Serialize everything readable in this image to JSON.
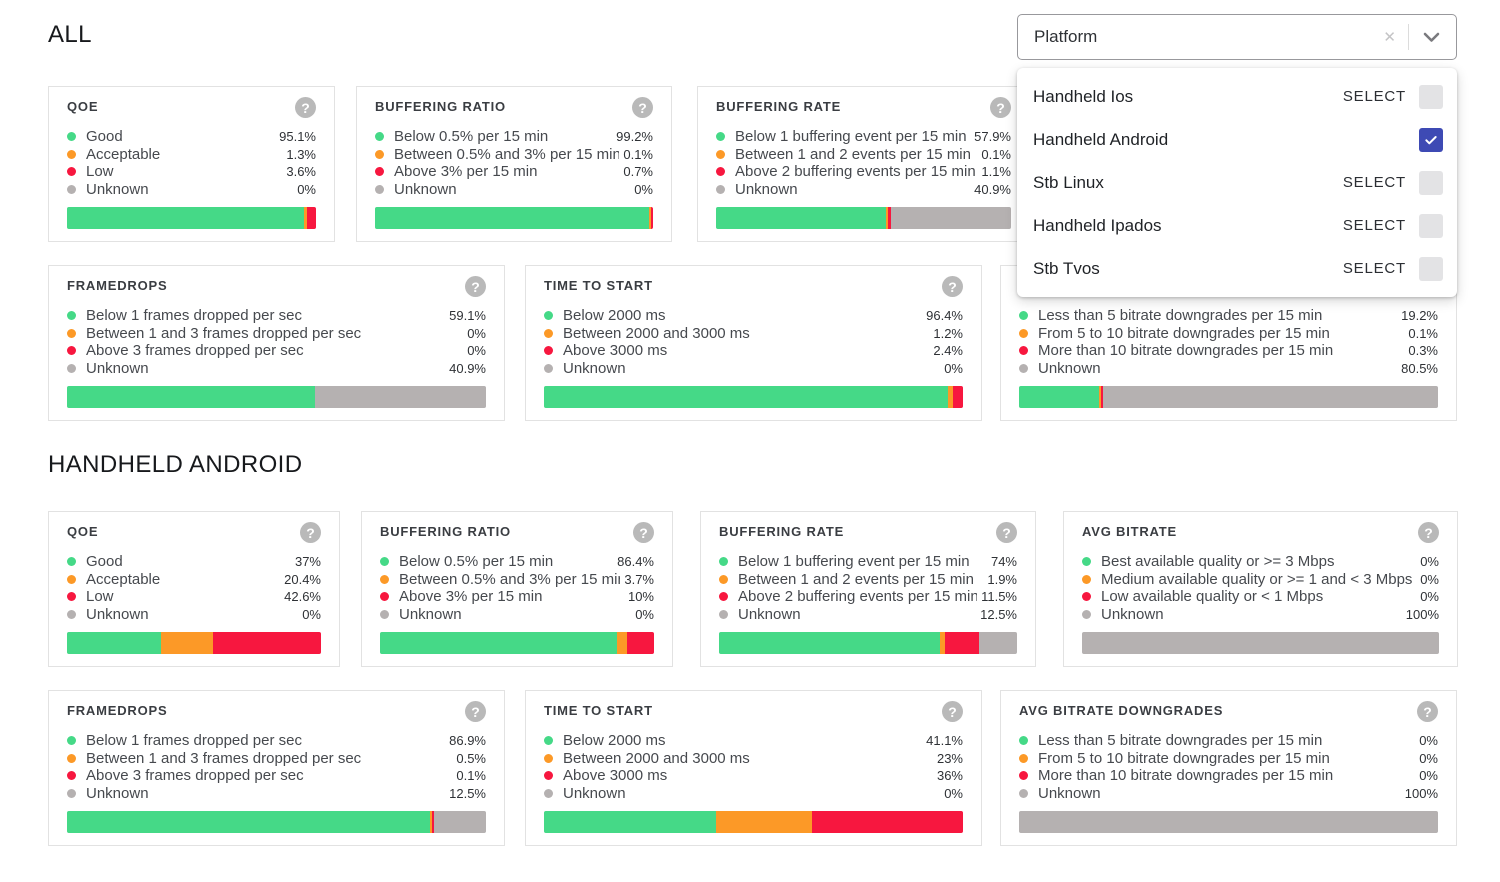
{
  "page": {
    "sections": [
      {
        "id": "all",
        "heading": "ALL",
        "cards": [
          {
            "id": "qoe",
            "title": "QOE",
            "show_help": true,
            "legend": [
              {
                "level": "good",
                "label": "Good",
                "value": "95.1%",
                "pct": 95.1
              },
              {
                "level": "acceptable",
                "label": "Acceptable",
                "value": "1.3%",
                "pct": 1.3
              },
              {
                "level": "low",
                "label": "Low",
                "value": "3.6%",
                "pct": 3.6
              },
              {
                "level": "unknown",
                "label": "Unknown",
                "value": "0%",
                "pct": 0
              }
            ]
          },
          {
            "id": "buffering-ratio",
            "title": "BUFFERING RATIO",
            "show_help": true,
            "legend": [
              {
                "level": "good",
                "label": "Below 0.5% per 15 min",
                "value": "99.2%",
                "pct": 99.2
              },
              {
                "level": "acceptable",
                "label": "Between 0.5% and 3% per 15 min",
                "value": "0.1%",
                "pct": 0.1
              },
              {
                "level": "low",
                "label": "Above 3% per 15 min",
                "value": "0.7%",
                "pct": 0.7
              },
              {
                "level": "unknown",
                "label": "Unknown",
                "value": "0%",
                "pct": 0
              }
            ]
          },
          {
            "id": "buffering-rate",
            "title": "BUFFERING RATE",
            "show_help": true,
            "legend": [
              {
                "level": "good",
                "label": "Below 1 buffering event per 15 min",
                "value": "57.9%",
                "pct": 57.9
              },
              {
                "level": "acceptable",
                "label": "Between 1 and 2 events per 15 min",
                "value": "0.1%",
                "pct": 0.1
              },
              {
                "level": "low",
                "label": "Above 2 buffering events per 15 min",
                "value": "1.1%",
                "pct": 1.1
              },
              {
                "level": "unknown",
                "label": "Unknown",
                "value": "40.9%",
                "pct": 40.9
              }
            ]
          },
          {
            "id": "framedrops",
            "title": "FRAMEDROPS",
            "show_help": true,
            "legend": [
              {
                "level": "good",
                "label": "Below 1 frames dropped per sec",
                "value": "59.1%",
                "pct": 59.1
              },
              {
                "level": "acceptable",
                "label": "Between 1 and 3 frames dropped per sec",
                "value": "0%",
                "pct": 0
              },
              {
                "level": "low",
                "label": "Above 3 frames dropped per sec",
                "value": "0%",
                "pct": 0
              },
              {
                "level": "unknown",
                "label": "Unknown",
                "value": "40.9%",
                "pct": 40.9
              }
            ]
          },
          {
            "id": "time-to-start",
            "title": "TIME TO START",
            "show_help": true,
            "legend": [
              {
                "level": "good",
                "label": "Below 2000 ms",
                "value": "96.4%",
                "pct": 96.4
              },
              {
                "level": "acceptable",
                "label": "Between 2000 and 3000 ms",
                "value": "1.2%",
                "pct": 1.2
              },
              {
                "level": "low",
                "label": "Above 3000 ms",
                "value": "2.4%",
                "pct": 2.4
              },
              {
                "level": "unknown",
                "label": "Unknown",
                "value": "0%",
                "pct": 0
              }
            ]
          },
          {
            "id": "avg-bitrate-downgrades",
            "title": "",
            "show_help": false,
            "legend": [
              {
                "level": "good",
                "label": "Less than 5 bitrate downgrades per 15 min",
                "value": "19.2%",
                "pct": 19.2
              },
              {
                "level": "acceptable",
                "label": "From 5 to 10 bitrate downgrades per 15 min",
                "value": "0.1%",
                "pct": 0.1
              },
              {
                "level": "low",
                "label": "More than 10 bitrate downgrades per 15 min",
                "value": "0.3%",
                "pct": 0.3
              },
              {
                "level": "unknown",
                "label": "Unknown",
                "value": "80.5%",
                "pct": 80.5
              }
            ]
          }
        ]
      },
      {
        "id": "handheld-android",
        "heading": "HANDHELD ANDROID",
        "cards": [
          {
            "id": "qoe",
            "title": "QOE",
            "show_help": true,
            "legend": [
              {
                "level": "good",
                "label": "Good",
                "value": "37%",
                "pct": 37
              },
              {
                "level": "acceptable",
                "label": "Acceptable",
                "value": "20.4%",
                "pct": 20.4
              },
              {
                "level": "low",
                "label": "Low",
                "value": "42.6%",
                "pct": 42.6
              },
              {
                "level": "unknown",
                "label": "Unknown",
                "value": "0%",
                "pct": 0
              }
            ]
          },
          {
            "id": "buffering-ratio",
            "title": "BUFFERING RATIO",
            "show_help": true,
            "legend": [
              {
                "level": "good",
                "label": "Below 0.5% per 15 min",
                "value": "86.4%",
                "pct": 86.4
              },
              {
                "level": "acceptable",
                "label": "Between 0.5% and 3% per 15 min",
                "value": "3.7%",
                "pct": 3.7
              },
              {
                "level": "low",
                "label": "Above 3% per 15 min",
                "value": "10%",
                "pct": 10
              },
              {
                "level": "unknown",
                "label": "Unknown",
                "value": "0%",
                "pct": 0
              }
            ]
          },
          {
            "id": "buffering-rate",
            "title": "BUFFERING RATE",
            "show_help": true,
            "legend": [
              {
                "level": "good",
                "label": "Below 1 buffering event per 15 min",
                "value": "74%",
                "pct": 74
              },
              {
                "level": "acceptable",
                "label": "Between 1 and 2 events per 15 min",
                "value": "1.9%",
                "pct": 1.9
              },
              {
                "level": "low",
                "label": "Above 2 buffering events per 15 min",
                "value": "11.5%",
                "pct": 11.5
              },
              {
                "level": "unknown",
                "label": "Unknown",
                "value": "12.5%",
                "pct": 12.5
              }
            ]
          },
          {
            "id": "avg-bitrate",
            "title": "AVG BITRATE",
            "show_help": true,
            "legend": [
              {
                "level": "good",
                "label": "Best available quality or >= 3 Mbps",
                "value": "0%",
                "pct": 0
              },
              {
                "level": "acceptable",
                "label": "Medium available quality or >= 1 and < 3 Mbps",
                "value": "0%",
                "pct": 0
              },
              {
                "level": "low",
                "label": "Low available quality or < 1 Mbps",
                "value": "0%",
                "pct": 0
              },
              {
                "level": "unknown",
                "label": "Unknown",
                "value": "100%",
                "pct": 100
              }
            ]
          },
          {
            "id": "framedrops",
            "title": "FRAMEDROPS",
            "show_help": true,
            "legend": [
              {
                "level": "good",
                "label": "Below 1 frames dropped per sec",
                "value": "86.9%",
                "pct": 86.9
              },
              {
                "level": "acceptable",
                "label": "Between 1 and 3 frames dropped per sec",
                "value": "0.5%",
                "pct": 0.5
              },
              {
                "level": "low",
                "label": "Above 3 frames dropped per sec",
                "value": "0.1%",
                "pct": 0.1
              },
              {
                "level": "unknown",
                "label": "Unknown",
                "value": "12.5%",
                "pct": 12.5
              }
            ]
          },
          {
            "id": "time-to-start",
            "title": "TIME TO START",
            "show_help": true,
            "legend": [
              {
                "level": "good",
                "label": "Below 2000 ms",
                "value": "41.1%",
                "pct": 41.1
              },
              {
                "level": "acceptable",
                "label": "Between 2000 and 3000 ms",
                "value": "23%",
                "pct": 23
              },
              {
                "level": "low",
                "label": "Above 3000 ms",
                "value": "36%",
                "pct": 36
              },
              {
                "level": "unknown",
                "label": "Unknown",
                "value": "0%",
                "pct": 0
              }
            ]
          },
          {
            "id": "avg-bitrate-downgrades",
            "title": "AVG BITRATE DOWNGRADES",
            "show_help": true,
            "legend": [
              {
                "level": "good",
                "label": "Less than 5 bitrate downgrades per 15 min",
                "value": "0%",
                "pct": 0
              },
              {
                "level": "acceptable",
                "label": "From 5 to 10 bitrate downgrades per 15 min",
                "value": "0%",
                "pct": 0
              },
              {
                "level": "low",
                "label": "More than 10 bitrate downgrades per 15 min",
                "value": "0%",
                "pct": 0
              },
              {
                "level": "unknown",
                "label": "Unknown",
                "value": "100%",
                "pct": 100
              }
            ]
          }
        ]
      }
    ]
  },
  "platform_filter": {
    "placeholder": "Platform",
    "clear_icon": "✕",
    "options": [
      {
        "label": "Handheld Ios",
        "action_label": "SELECT",
        "checked": false
      },
      {
        "label": "Handheld Android",
        "action_label": "",
        "checked": true
      },
      {
        "label": "Stb Linux",
        "action_label": "SELECT",
        "checked": false
      },
      {
        "label": "Handheld Ipados",
        "action_label": "SELECT",
        "checked": false
      },
      {
        "label": "Stb Tvos",
        "action_label": "SELECT",
        "checked": false
      }
    ]
  },
  "colors": {
    "good": "#45d987",
    "acceptable": "#fc9927",
    "low": "#f7173f",
    "unknown": "#b5b1b1",
    "checkbox_checked": "#3e4ab4"
  }
}
